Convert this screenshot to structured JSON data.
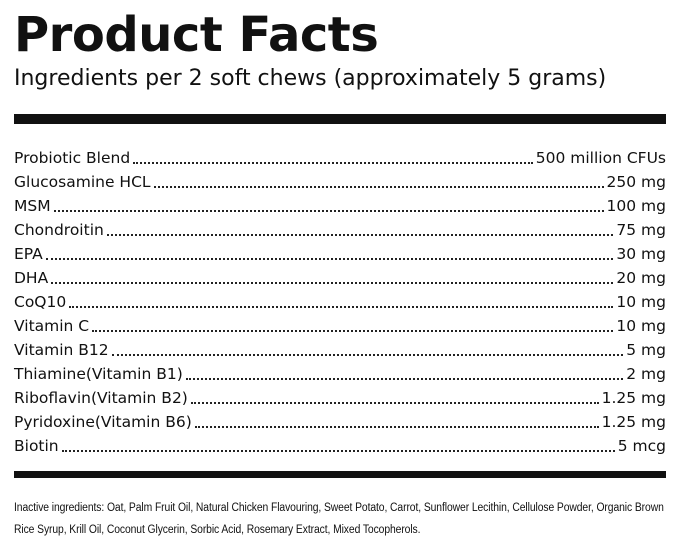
{
  "header": {
    "title": "Product Facts",
    "subtitle": "Ingredients per 2 soft chews (approximately 5 grams)"
  },
  "facts": [
    {
      "name": "Probiotic Blend",
      "amount": "500 million CFUs"
    },
    {
      "name": "Glucosamine HCL",
      "amount": "250 mg"
    },
    {
      "name": "MSM",
      "amount": "100 mg"
    },
    {
      "name": "Chondroitin",
      "amount": "75 mg"
    },
    {
      "name": "EPA",
      "amount": "30 mg"
    },
    {
      "name": "DHA",
      "amount": "20 mg"
    },
    {
      "name": "CoQ10",
      "amount": "10 mg"
    },
    {
      "name": "Vitamin C",
      "amount": "10 mg"
    },
    {
      "name": "Vitamin B12",
      "amount": "5 mg"
    },
    {
      "name": "Thiamine(Vitamin B1)",
      "amount": "2 mg"
    },
    {
      "name": "Riboflavin(Vitamin B2)",
      "amount": "1.25 mg"
    },
    {
      "name": "Pyridoxine(Vitamin B6)",
      "amount": "1.25 mg"
    },
    {
      "name": "Biotin",
      "amount": "5 mcg"
    }
  ],
  "inactive": {
    "text": "Inactive ingredients: Oat, Palm Fruit Oil, Natural Chicken Flavouring, Sweet Potato, Carrot, Sunflower Lecithin, Cellulose Powder, Organic Brown Rice Syrup, Krill Oil, Coconut Glycerin, Sorbic Acid, Rosemary Extract, Mixed Tocopherols."
  },
  "colors": {
    "text": "#111111",
    "background": "#ffffff"
  }
}
